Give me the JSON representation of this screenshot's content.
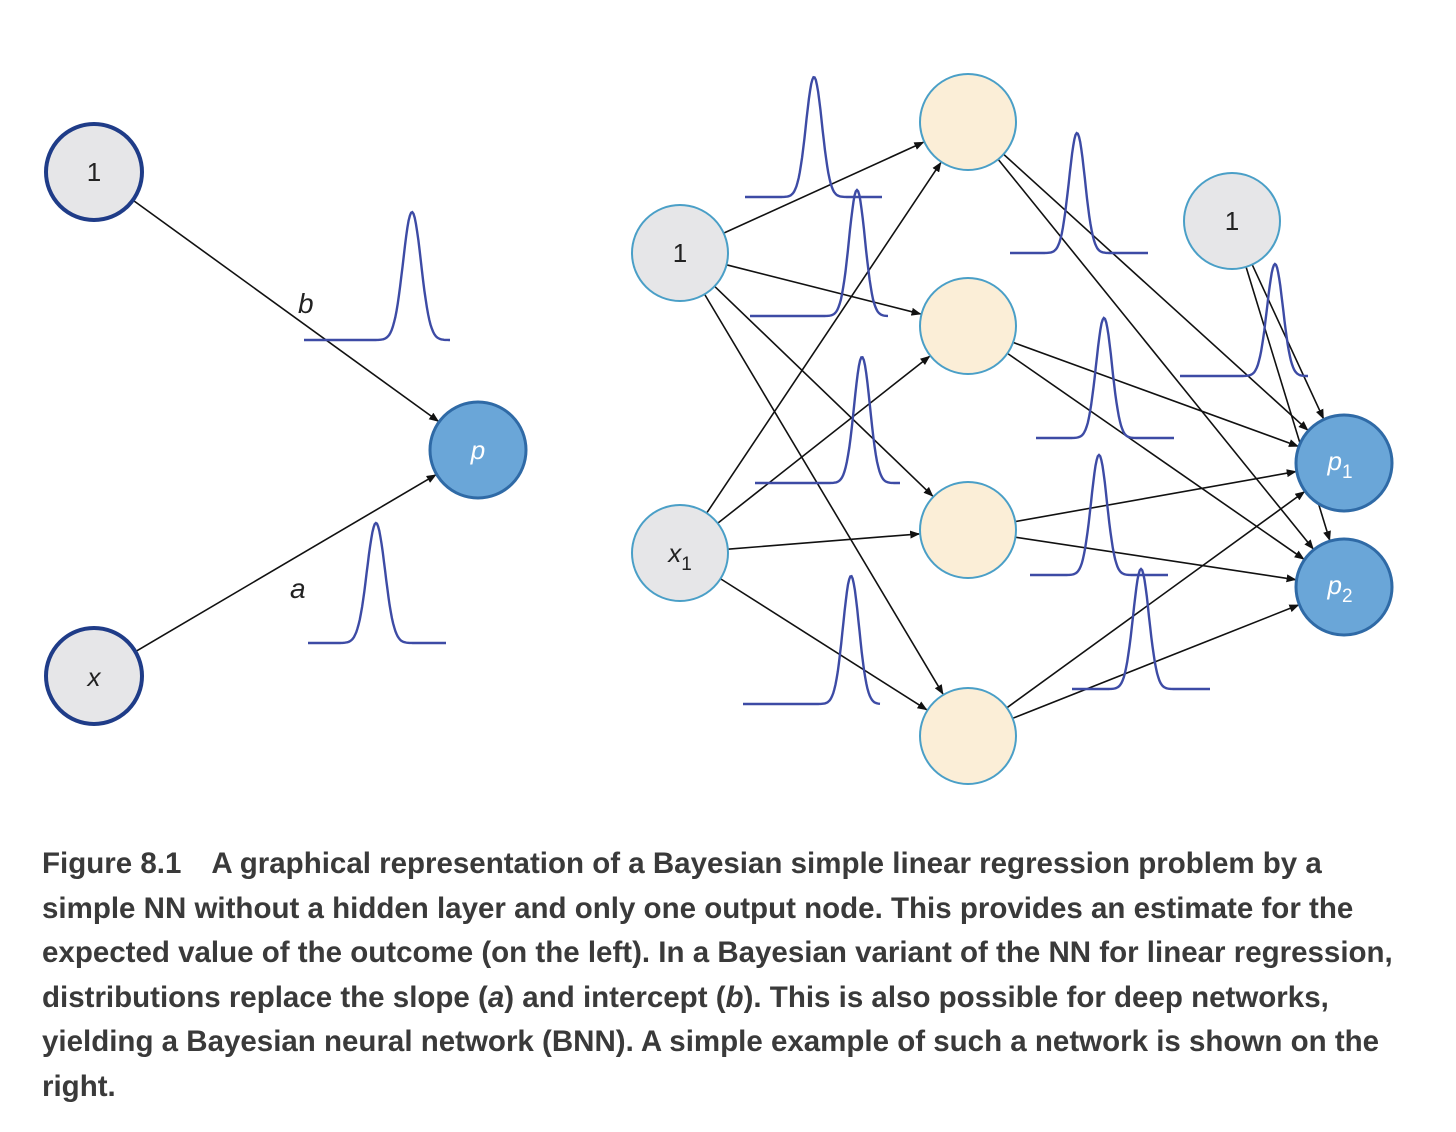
{
  "colors": {
    "input_fill": "#e6e6e8",
    "left_stroke": "#1f3c88",
    "right_stroke": "#4a9fc7",
    "hidden_fill": "#fbeed7",
    "output_fill": "#6aa6d8",
    "output_stroke": "#2f6aa6",
    "curve": "#3d4ba5",
    "arrow": "#111111"
  },
  "left_network": {
    "bias_node": "1",
    "input_node": "x",
    "output_node": "p",
    "slope_label": "a",
    "intercept_label": "b"
  },
  "right_network": {
    "bias_node": "1",
    "input_node": "x",
    "input_sub": "1",
    "hidden_bias_node": "1",
    "outputs": [
      {
        "text": "p",
        "sub": "1"
      },
      {
        "text": "p",
        "sub": "2"
      }
    ]
  },
  "caption": {
    "figure_number": "Figure 8.1",
    "text_1": "A graphical representation of a Bayesian simple linear regression problem by a simple NN without a hidden layer and only one output node. This provides an estimate for the expected value of the outcome (on the left). In a Bayesian variant of the NN for linear regression, distributions replace the slope (",
    "a": "a",
    "text_2": ") and intercept (",
    "b": "b",
    "text_3": "). This is also possible for deep networks, yielding a Bayesian neural network (BNN). A simple example of such a network is shown on the right."
  }
}
